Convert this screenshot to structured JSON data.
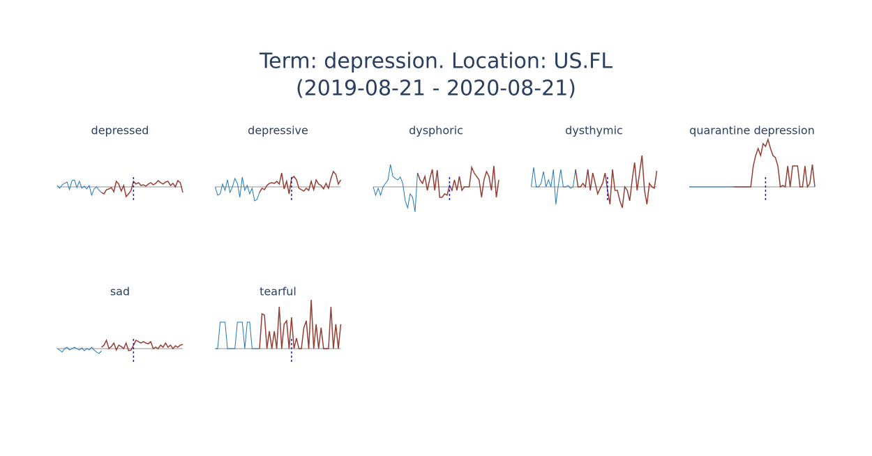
{
  "title_lines": [
    "Term: depression. Location: US.FL",
    "(2019-08-21 - 2020-08-21)"
  ],
  "chart_data": [
    {
      "type": "line",
      "title": "depressed",
      "ylim": [
        -40,
        75
      ],
      "vline": 31,
      "series": [
        {
          "color": "#1f77b4",
          "values": [
            2,
            -2,
            3,
            5,
            7,
            -4,
            9,
            10,
            -1,
            8,
            -2,
            1,
            -3,
            2,
            -12,
            -3,
            0,
            -5,
            -8,
            null,
            null,
            null,
            null,
            null,
            null,
            null,
            null,
            null,
            null,
            null,
            null,
            null,
            null,
            null,
            null,
            null,
            null,
            null,
            null,
            null,
            null,
            null,
            null,
            null,
            null,
            null,
            null,
            null,
            null,
            null,
            null,
            null
          ]
        },
        {
          "color": "#943d32",
          "values": [
            null,
            null,
            null,
            null,
            null,
            null,
            null,
            null,
            null,
            null,
            null,
            null,
            null,
            null,
            null,
            null,
            null,
            null,
            -8,
            -10,
            -4,
            -3,
            -1,
            -7,
            8,
            4,
            -6,
            2,
            -14,
            -10,
            -5,
            8,
            4,
            6,
            2,
            3,
            1,
            4,
            6,
            3,
            5,
            9,
            6,
            4,
            7,
            8,
            2,
            5,
            0,
            9,
            6,
            -8
          ]
        }
      ]
    },
    {
      "type": "line",
      "title": "depressive",
      "ylim": [
        -40,
        75
      ],
      "vline": 31,
      "series": [
        {
          "color": "#1f77b4",
          "values": [
            0,
            -12,
            -10,
            4,
            -5,
            10,
            -8,
            0,
            12,
            5,
            -15,
            14,
            -5,
            2,
            -10,
            -2,
            -20,
            -18,
            -8,
            null,
            null,
            null,
            null,
            null,
            null,
            null,
            null,
            null,
            null,
            null,
            null,
            null,
            null,
            null,
            null,
            null,
            null,
            null,
            null,
            null,
            null,
            null,
            null,
            null,
            null,
            null,
            null,
            null,
            null,
            null,
            null,
            null
          ]
        },
        {
          "color": "#943d32",
          "values": [
            null,
            null,
            null,
            null,
            null,
            null,
            null,
            null,
            null,
            null,
            null,
            null,
            null,
            null,
            null,
            null,
            null,
            null,
            -8,
            -2,
            -4,
            2,
            5,
            6,
            5,
            8,
            4,
            20,
            -3,
            8,
            -10,
            12,
            15,
            10,
            -2,
            -4,
            -6,
            -2,
            -5,
            8,
            -4,
            10,
            4,
            2,
            -3,
            5,
            -2,
            12,
            22,
            18,
            4,
            10
          ]
        }
      ]
    },
    {
      "type": "line",
      "title": "dysphoric",
      "ylim": [
        -40,
        75
      ],
      "vline": 31,
      "series": [
        {
          "color": "#1f77b4",
          "values": [
            0,
            -12,
            -2,
            -12,
            0,
            5,
            10,
            32,
            15,
            12,
            10,
            14,
            5,
            -20,
            -30,
            -10,
            -15,
            -36,
            20,
            null,
            null,
            null,
            null,
            null,
            null,
            null,
            null,
            null,
            null,
            null,
            null,
            null,
            null,
            null,
            null,
            null,
            null,
            null,
            null,
            null,
            null,
            null,
            null,
            null,
            null,
            null,
            null,
            null,
            null,
            null,
            null,
            null
          ]
        },
        {
          "color": "#943d32",
          "values": [
            null,
            null,
            null,
            null,
            null,
            null,
            null,
            null,
            null,
            null,
            null,
            null,
            null,
            null,
            null,
            null,
            null,
            null,
            20,
            10,
            5,
            15,
            -5,
            12,
            25,
            -5,
            24,
            -15,
            -15,
            -10,
            -12,
            2,
            -5,
            10,
            -5,
            15,
            -5,
            0,
            0,
            0,
            28,
            20,
            15,
            10,
            -15,
            10,
            22,
            15,
            -5,
            30,
            -15,
            10
          ]
        }
      ]
    },
    {
      "type": "line",
      "title": "dysthymic",
      "ylim": [
        -40,
        75
      ],
      "vline": 31,
      "series": [
        {
          "color": "#1f77b4",
          "values": [
            0,
            28,
            0,
            0,
            5,
            22,
            0,
            10,
            0,
            25,
            -25,
            2,
            25,
            0,
            0,
            2,
            -2,
            0,
            25,
            null,
            null,
            null,
            null,
            null,
            null,
            null,
            null,
            null,
            null,
            null,
            null,
            null,
            null,
            null,
            null,
            null,
            null,
            null,
            null,
            null,
            null,
            null,
            null,
            null,
            null,
            null,
            null,
            null,
            null,
            null,
            null,
            null
          ]
        },
        {
          "color": "#943d32",
          "values": [
            null,
            null,
            null,
            null,
            null,
            null,
            null,
            null,
            null,
            null,
            null,
            null,
            null,
            null,
            null,
            null,
            null,
            null,
            25,
            0,
            0,
            5,
            0,
            25,
            -5,
            20,
            5,
            -10,
            -2,
            5,
            20,
            -5,
            -25,
            25,
            -5,
            -5,
            -20,
            -30,
            0,
            -5,
            -20,
            10,
            35,
            -5,
            20,
            45,
            -5,
            -25,
            5,
            0,
            -2,
            23
          ]
        }
      ]
    },
    {
      "type": "line",
      "title": "quarantine depression",
      "ylim": [
        -40,
        75
      ],
      "vline": 31,
      "series": [
        {
          "color": "#1f77b4",
          "values": [
            0,
            0,
            0,
            0,
            0,
            0,
            0,
            0,
            0,
            0,
            0,
            0,
            0,
            0,
            0,
            0,
            0,
            0,
            0,
            null,
            null,
            null,
            null,
            null,
            null,
            null,
            null,
            null,
            null,
            null,
            null,
            null,
            null,
            null,
            null,
            null,
            null,
            null,
            null,
            null,
            null,
            null,
            null,
            null,
            null,
            null,
            null,
            null,
            null,
            null,
            null,
            null
          ]
        },
        {
          "color": "#943d32",
          "values": [
            null,
            null,
            null,
            null,
            null,
            null,
            null,
            null,
            null,
            null,
            null,
            null,
            null,
            null,
            null,
            null,
            null,
            null,
            0,
            0,
            0,
            0,
            0,
            0,
            0,
            0,
            30,
            45,
            55,
            45,
            62,
            58,
            68,
            55,
            45,
            42,
            30,
            0,
            2,
            0,
            30,
            0,
            30,
            30,
            30,
            0,
            0,
            30,
            0,
            5,
            32,
            0
          ]
        }
      ]
    },
    {
      "type": "line",
      "title": "sad",
      "ylim": [
        -40,
        75
      ],
      "vline": 31,
      "series": [
        {
          "color": "#1f77b4",
          "values": [
            0,
            -2,
            -5,
            0,
            2,
            -2,
            0,
            2,
            0,
            -2,
            1,
            -3,
            0,
            -2,
            2,
            -2,
            -5,
            -7,
            -3,
            null,
            null,
            null,
            null,
            null,
            null,
            null,
            null,
            null,
            null,
            null,
            null,
            null,
            null,
            null,
            null,
            null,
            null,
            null,
            null,
            null,
            null,
            null,
            null,
            null,
            null,
            null,
            null,
            null,
            null,
            null,
            null,
            null
          ]
        },
        {
          "color": "#943d32",
          "values": [
            null,
            null,
            null,
            null,
            null,
            null,
            null,
            null,
            null,
            null,
            null,
            null,
            null,
            null,
            null,
            null,
            null,
            null,
            2,
            5,
            12,
            0,
            3,
            8,
            -2,
            5,
            3,
            0,
            8,
            -3,
            -2,
            5,
            12,
            10,
            8,
            10,
            8,
            7,
            10,
            0,
            2,
            0,
            5,
            2,
            8,
            2,
            5,
            0,
            4,
            2,
            5,
            6
          ]
        }
      ]
    },
    {
      "type": "line",
      "title": "tearful",
      "ylim": [
        -40,
        75
      ],
      "vline": 31,
      "series": [
        {
          "color": "#1f77b4",
          "values": [
            0,
            0,
            38,
            38,
            38,
            0,
            0,
            0,
            0,
            38,
            38,
            38,
            0,
            38,
            38,
            0,
            0,
            0,
            0,
            null,
            null,
            null,
            null,
            null,
            null,
            null,
            null,
            null,
            null,
            null,
            null,
            null,
            null,
            null,
            null,
            null,
            null,
            null,
            null,
            null,
            null,
            null,
            null,
            null,
            null,
            null,
            null,
            null,
            null,
            null,
            null,
            null
          ]
        },
        {
          "color": "#943d32",
          "values": [
            null,
            null,
            null,
            null,
            null,
            null,
            null,
            null,
            null,
            null,
            null,
            null,
            null,
            null,
            null,
            null,
            null,
            null,
            0,
            50,
            48,
            0,
            25,
            0,
            25,
            0,
            60,
            0,
            35,
            40,
            0,
            45,
            0,
            15,
            0,
            0,
            30,
            40,
            0,
            70,
            0,
            35,
            0,
            30,
            0,
            0,
            0,
            60,
            0,
            35,
            0,
            35
          ]
        }
      ]
    }
  ]
}
